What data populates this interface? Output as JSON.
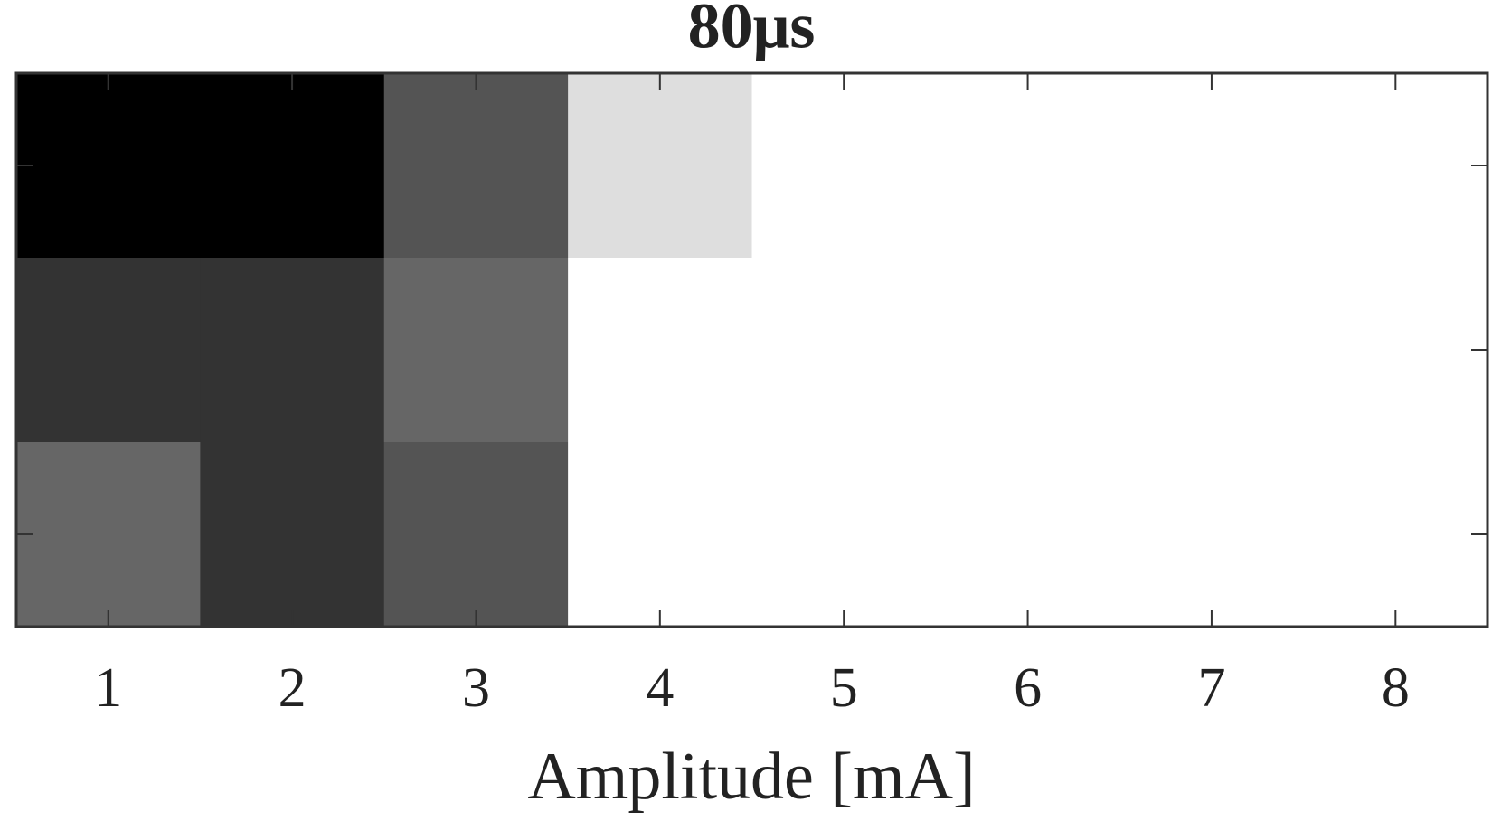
{
  "chart_data": {
    "type": "heatmap",
    "title": "80μs",
    "x_label": "Amplitude [mA]",
    "categories": [
      "1",
      "2",
      "3",
      "4",
      "5",
      "6",
      "7",
      "8"
    ],
    "y_categories": [
      null,
      null,
      null
    ],
    "z": [
      [
        1,
        1,
        0.67,
        0.13,
        0,
        0,
        0,
        0
      ],
      [
        0.8,
        0.8,
        0.6,
        0,
        0,
        0,
        0,
        0
      ],
      [
        0.6,
        0.8,
        0.67,
        0,
        0,
        0,
        0,
        0
      ]
    ],
    "zlim": [
      0,
      1
    ],
    "colormap": "gray_r"
  }
}
